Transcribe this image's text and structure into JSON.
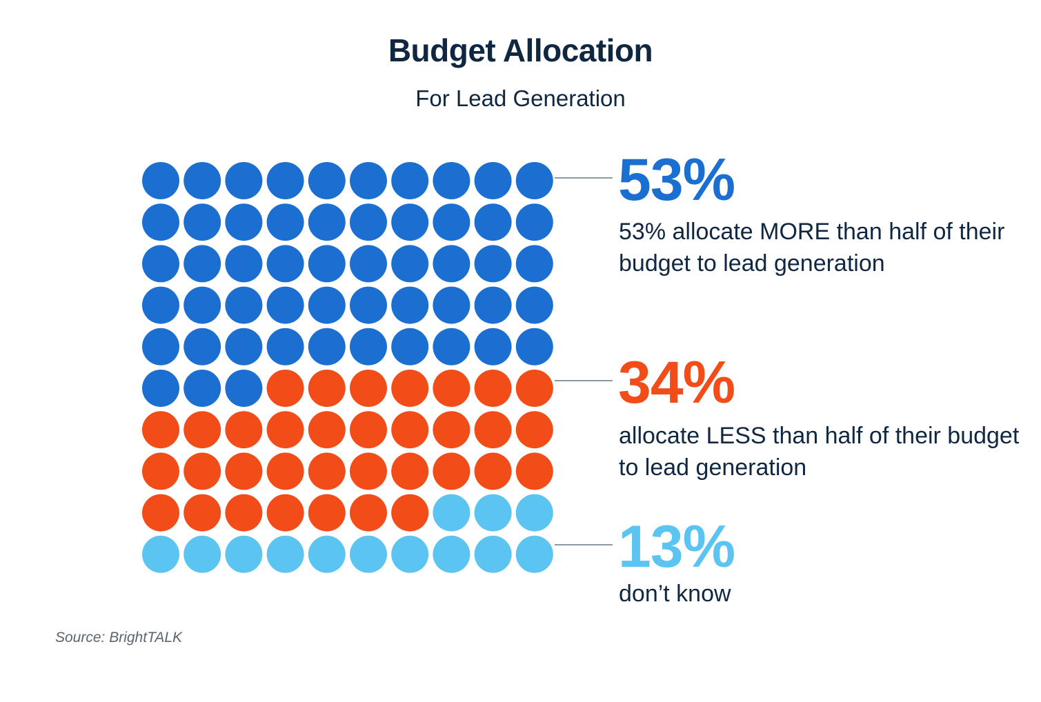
{
  "chart_data": {
    "type": "waffle",
    "title": "Budget Allocation",
    "subtitle": "For Lead Generation",
    "grid": {
      "rows": 10,
      "cols": 10
    },
    "series": [
      {
        "name": "53%",
        "value": 53,
        "color": "#1a6fd1",
        "description": "53% allocate MORE than half of their budget to lead generation"
      },
      {
        "name": "34%",
        "value": 34,
        "color": "#f24c18",
        "description": "allocate LESS than half of their budget to lead generation"
      },
      {
        "name": "13%",
        "value": 13,
        "color": "#5bc4f1",
        "description": "don’t know"
      }
    ],
    "source": "Source: BrightTALK"
  },
  "colors": {
    "title": "#0f2741",
    "connector": "#8a98a8"
  }
}
